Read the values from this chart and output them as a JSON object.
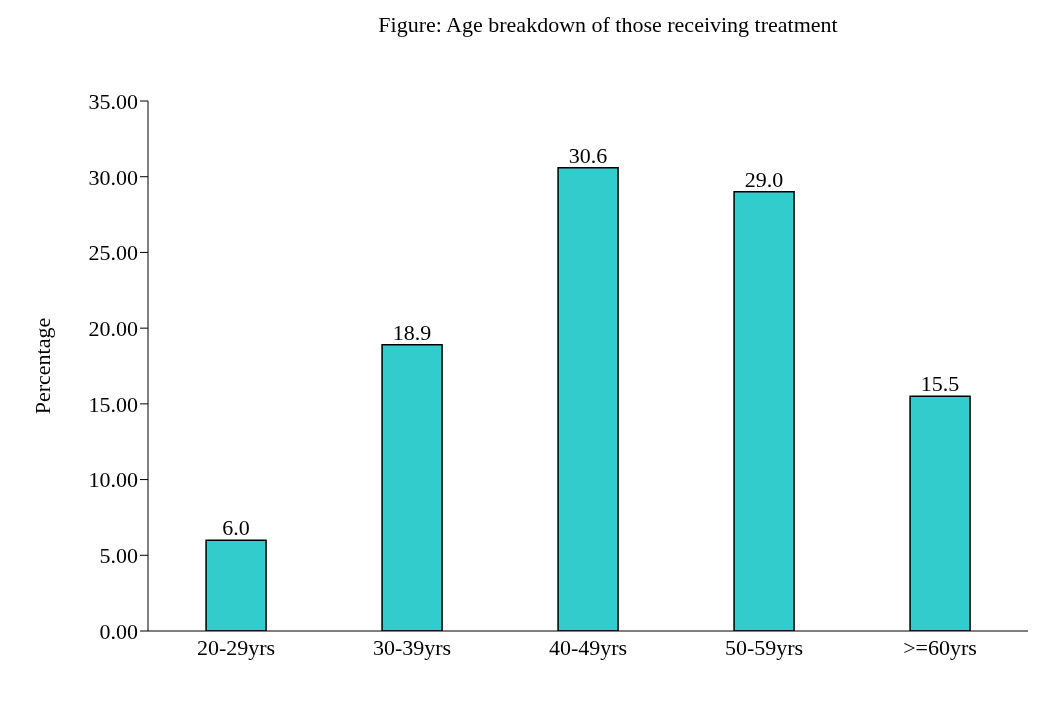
{
  "chart_data": {
    "type": "bar",
    "title": "Figure: Age breakdown of those receiving treatment",
    "ylabel": "Percentage",
    "categories": [
      "20-29yrs",
      "30-39yrs",
      "40-49yrs",
      "50-59yrs",
      ">=60yrs"
    ],
    "values": [
      6.0,
      18.9,
      30.6,
      29.0,
      15.5
    ],
    "value_labels": [
      "6.0",
      "18.9",
      "30.6",
      "29.0",
      "15.5"
    ],
    "color": "#33cccc",
    "ylim": [
      0,
      35
    ],
    "yticks": [
      {
        "value": 0,
        "label": "0.00"
      },
      {
        "value": 5,
        "label": "5.00"
      },
      {
        "value": 10,
        "label": "10.00"
      },
      {
        "value": 15,
        "label": "15.00"
      },
      {
        "value": 20,
        "label": "20.00"
      },
      {
        "value": 25,
        "label": "25.00"
      },
      {
        "value": 30,
        "label": "30.00"
      },
      {
        "value": 35,
        "label": "35.00"
      }
    ],
    "grid": false,
    "legend": false
  }
}
